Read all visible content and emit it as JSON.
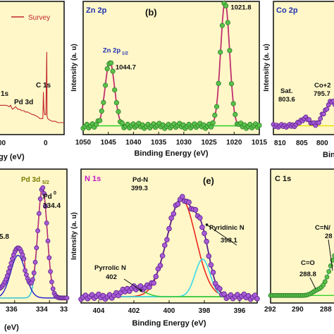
{
  "chart_data": [
    {
      "id": "a",
      "type": "line",
      "xlabel": "gy (eV)",
      "xticks": [
        "00",
        "0"
      ],
      "legend": [
        "Survey"
      ],
      "annotations": [
        "C 1s",
        "1s",
        "Pd 3d"
      ],
      "series": [
        {
          "name": "Survey",
          "x": [
            1100,
            1000,
            950,
            900,
            880,
            860,
            850,
            820,
            800,
            780,
            760,
            730,
            700,
            680,
            660,
            640,
            620,
            600,
            560,
            520,
            500,
            460,
            420,
            400,
            380,
            350,
            340,
            335,
            330,
            320,
            300,
            290,
            285,
            280,
            270,
            240,
            200,
            150,
            100,
            50,
            0
          ],
          "y": [
            22,
            22,
            22,
            21,
            22,
            20,
            19,
            20,
            21,
            20,
            19,
            19,
            18,
            18,
            18,
            17,
            17,
            17,
            16,
            15,
            15,
            14,
            13,
            12,
            12,
            12,
            32,
            22,
            18,
            15,
            15,
            48,
            62,
            14,
            12,
            11,
            10,
            10,
            9,
            9,
            9
          ]
        }
      ]
    },
    {
      "id": "b",
      "type": "scatter",
      "title": "Zn 2p",
      "panel_label": "(b)",
      "xlabel": "Binding Energy (eV)",
      "ylabel": "Intensity (a. u)",
      "xlim": [
        1050,
        1015
      ],
      "xticks": [
        1050,
        1045,
        1040,
        1035,
        1030,
        1025,
        1020,
        1015
      ],
      "annotations": [
        {
          "label": "Zn 2p",
          "sub": "1/2",
          "value": "1044.7",
          "x": 1044.7
        },
        {
          "label": "Zn 2p",
          "sub": "3/2",
          "value": "1021.8",
          "x": 1021.8
        }
      ],
      "peaks": [
        {
          "center": 1044.7,
          "height": 0.52,
          "width": 1.3
        },
        {
          "center": 1021.8,
          "height": 1.0,
          "width": 1.25
        }
      ],
      "baseline": 0.07
    },
    {
      "id": "c",
      "type": "scatter",
      "title": "Co 2p",
      "xlabel": "Bin",
      "ylabel": "Intensity (a. u)",
      "xlim": [
        810,
        797
      ],
      "xticks": [
        810,
        805,
        800
      ],
      "annotations": [
        {
          "label": "Sat.",
          "value": "803.6"
        },
        {
          "label": "Co+2",
          "value": "795.7"
        }
      ]
    },
    {
      "id": "d",
      "type": "line",
      "xlabel": "(eV)",
      "xlim": [
        337,
        333
      ],
      "xticks": [
        336,
        334,
        33
      ],
      "annotations": [
        {
          "label": "Pd 3d",
          "sub": "5/2"
        },
        {
          "label": "Pd",
          "sup": "0",
          "value": "334.4"
        },
        {
          "label": "5.8"
        }
      ],
      "peaks": [
        {
          "center": 334.4,
          "height": 0.88,
          "width": 0.38,
          "color": "#2ec4d8"
        },
        {
          "center": 335.8,
          "height": 0.34,
          "width": 0.6,
          "color": "#2c2ad0"
        }
      ]
    },
    {
      "id": "e",
      "type": "scatter",
      "title": "N 1s",
      "panel_label": "(e)",
      "xlabel": "Binding Energy (eV)",
      "ylabel": "Intensity (a. u)",
      "xlim": [
        405,
        395
      ],
      "xticks": [
        404,
        402,
        400,
        398,
        396
      ],
      "annotations": [
        {
          "label": "Pd-N",
          "value": "399.3"
        },
        {
          "label": "Pyridinic N",
          "value": "398.1"
        },
        {
          "label": "Pyrrolic N",
          "value": "402"
        }
      ],
      "peaks": [
        {
          "center": 399.3,
          "height": 0.78,
          "width": 1.15,
          "color": "#e8281e"
        },
        {
          "center": 398.1,
          "height": 0.3,
          "width": 0.6,
          "color": "#38d8e8"
        },
        {
          "center": 402.0,
          "height": 0.07,
          "width": 0.8,
          "color": "#3ac840"
        }
      ],
      "baseline": 0.05
    },
    {
      "id": "f",
      "type": "scatter",
      "title": "C 1s",
      "xticks": [
        292,
        290,
        288
      ],
      "annotations": [
        {
          "label": "C=N/",
          "value": "28"
        },
        {
          "label": "C=O",
          "value": "288.8"
        }
      ]
    }
  ],
  "colors": {
    "panel_bg": "#fff7c8",
    "frame": "#1a1a1a",
    "marker_green": "#59c24a",
    "marker_green_edge": "#2c7d2a",
    "marker_purple": "#a75bd6",
    "marker_purple_edge": "#5a1f8a",
    "fit_magenta": "#c0306e",
    "fit_red": "#e8281e",
    "base_green": "#35d22f",
    "survey_red": "#c0272d",
    "title_blue": "#1e2fb0",
    "title_magenta": "#c21bc6"
  }
}
